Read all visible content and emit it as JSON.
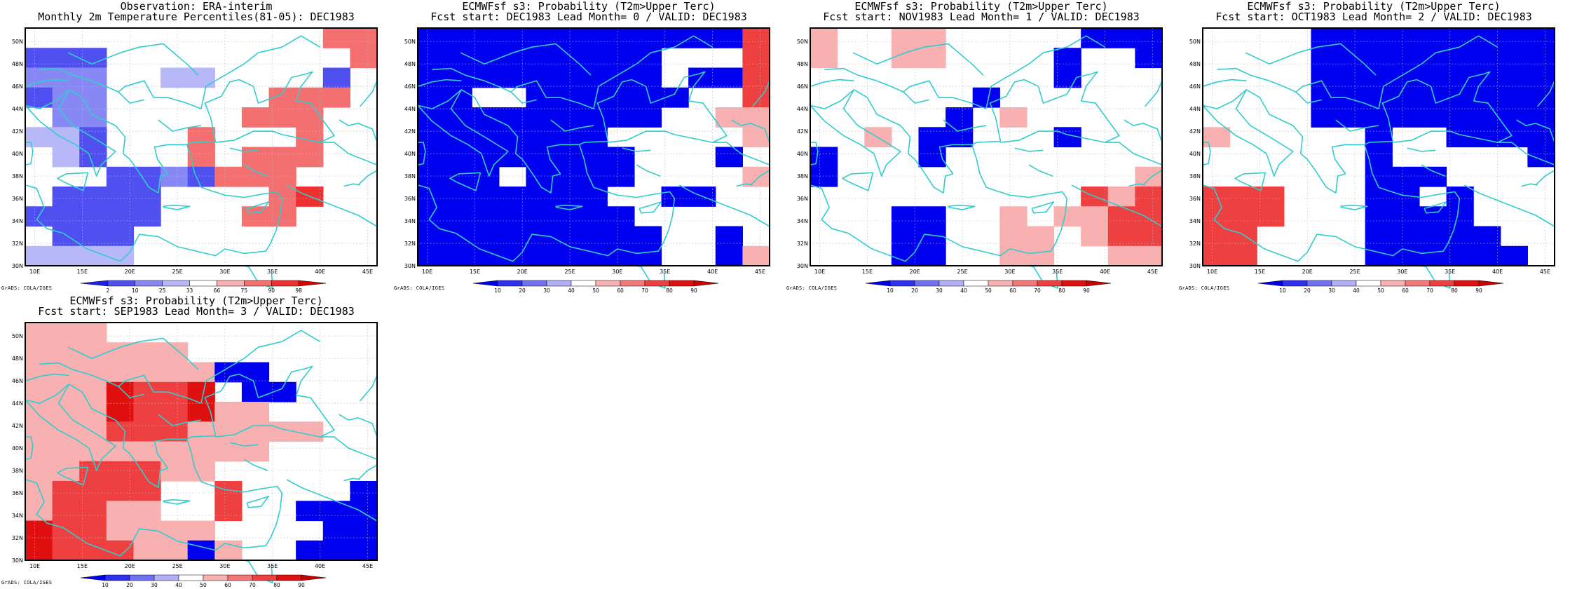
{
  "footer_text": "GrADS: COLA/IGES",
  "colors": {
    "coast": "#33cccc",
    "grid": "#bbbbbb",
    "frame": "#000000"
  },
  "map": {
    "lon_range": [
      9,
      46
    ],
    "lat_range": [
      30,
      51.2
    ],
    "lon_tick_labels": [
      "10E",
      "15E",
      "20E",
      "25E",
      "30E",
      "35E",
      "40E",
      "45E"
    ],
    "lat_tick_labels": [
      "30N",
      "32N",
      "34N",
      "36N",
      "38N",
      "40N",
      "42N",
      "44N",
      "46N",
      "48N",
      "50N"
    ]
  },
  "legends": {
    "obs": {
      "labels": [
        "2",
        "10",
        "25",
        "33",
        "66",
        "75",
        "90",
        "98"
      ],
      "colors": [
        "#2020ee",
        "#5050f0",
        "#8888f4",
        "#b8b8f8",
        "#ffffff",
        "#f8b0b0",
        "#f47070",
        "#ee3030",
        "#dd0000"
      ]
    },
    "prob": {
      "labels": [
        "10",
        "20",
        "30",
        "40",
        "50",
        "60",
        "70",
        "80",
        "90"
      ],
      "colors": [
        "#0000f0",
        "#3030f0",
        "#7070f4",
        "#b0b0f8",
        "#ffffff",
        "#f8b0b0",
        "#f47878",
        "#ee4040",
        "#e01010",
        "#c80000"
      ]
    }
  },
  "panels": [
    {
      "id": "obs",
      "title_line1": "Observation: ERA-interim",
      "title_line2": "Monthly 2m Temperature Percentiles(81-05): DEC1983",
      "legend": "obs",
      "grid": [
        "...........RR",
        "BBB.........R",
        "bbb..cc....B.",
        "Bbb......RRR.",
        ".bb.....RRR..",
        "ccB...R...R..",
        ".cB...R.RRR..",
        "...BBbBRRR...",
        ".BBBB....RS..",
        "BBBBB...RR...",
        ".BBB.........",
        "cccc........."
      ]
    },
    {
      "id": "lead0",
      "title_line1": "ECMWFsf s3: Probability (T2m>Upper Terc)",
      "title_line2": "Fcst start: DEC1983  Lead Month= 0 / VALID: DEC1983",
      "legend": "prob",
      "grid": [
        "BBBBBBBBBBBBR",
        "BBBBBBBBB...R",
        "BBBBBBBBB.BBR",
        "BB..BBBBBB..R",
        "BBBBBBBBB..pp",
        "BBBBBBB.....p",
        "BBBBBBBB...B.",
        "BBB.BBBB....p",
        "BBBBBBB..BB..",
        "BBBBBBBB.....",
        "BBBBBBBBB..B.",
        "BBBBBBBBB..Bp"
      ]
    },
    {
      "id": "lead1",
      "title_line1": "ECMWFsf s3: Probability (T2m>Upper Terc)",
      "title_line2": "Fcst start: NOV1983  Lead Month= 1 / VALID: DEC1983",
      "legend": "prob",
      "grid": [
        "p..pp.....BBB",
        "p..pp....B..B",
        ".........B...",
        "......B......",
        ".....B.p.....",
        "..p.BB...B...",
        "B...B........",
        "B...........p",
        "..........RpR",
        "...BB..p.ppRR",
        "...BB..pp.pRR",
        "...BB..pp..pp"
      ]
    },
    {
      "id": "lead2",
      "title_line1": "ECMWFsf s3: Probability (T2m>Upper Terc)",
      "title_line2": "Fcst start: OCT1983  Lead Month= 2 / VALID: DEC1983",
      "legend": "prob",
      "grid": [
        "....BBBBBBBBB",
        "....BBBBBBBBB",
        "....BBBBBBBBB",
        "....BBBBBBBBB",
        "....BBBBBBBBB",
        "p.....B..BBBB",
        "......B.....B",
        "......BBB....",
        "RRR...BB.B...",
        "RRR...BBBB...",
        "RR....BBBBB..",
        "RR....BBBBBB."
      ]
    },
    {
      "id": "lead3",
      "title_line1": "ECMWFsf s3: Probability (T2m>Upper Terc)",
      "title_line2": "Fcst start: SEP1983  Lead Month= 3 / VALID: DEC1983",
      "legend": "prob",
      "grid": [
        "ppp..........",
        "pppppp.......",
        "pppppppBB....",
        "pppSRRS.BB...",
        "pppSRRSpp....",
        "pppRRRppppp..",
        "ppppppppp....",
        "ppRRRpp......",
        "pRRRR..R....B",
        "pRRpp..R..BBB",
        "SRRpppp....BB",
        "SRRRppBp..BBB"
      ]
    }
  ]
}
